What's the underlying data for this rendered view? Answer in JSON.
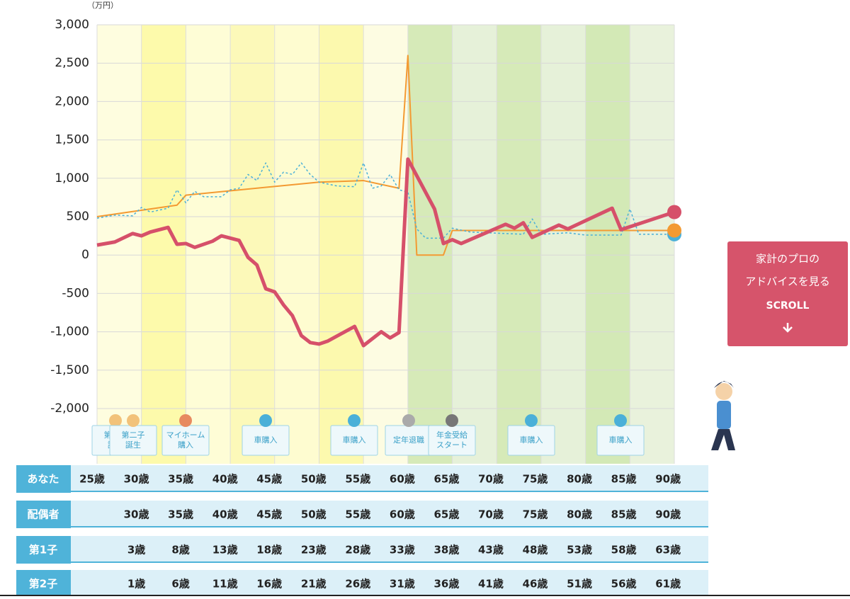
{
  "chart_data": {
    "type": "line",
    "unit": "（万円）",
    "xlim": [
      25,
      90
    ],
    "ylim": [
      -2000,
      3000
    ],
    "yticks": [
      {
        "value": 3000,
        "label": "3,000"
      },
      {
        "value": 2500,
        "label": "2,500"
      },
      {
        "value": 2000,
        "label": "2,000"
      },
      {
        "value": 1500,
        "label": "1,500"
      },
      {
        "value": 1000,
        "label": "1,000"
      },
      {
        "value": 500,
        "label": "500"
      },
      0,
      {
        "value": -500,
        "label": "-500"
      },
      {
        "value": -1000,
        "label": "-1,000"
      },
      {
        "value": -1500,
        "label": "-1,500"
      },
      {
        "value": -2000,
        "label": "-2,000"
      }
    ],
    "grid": true,
    "series": [
      {
        "color": "#f39a32",
        "style": "solid",
        "x": [
          25,
          34,
          35,
          50,
          55,
          59,
          60,
          61,
          64,
          65,
          90
        ],
        "values": [
          500,
          650,
          780,
          950,
          970,
          870,
          2600,
          0,
          0,
          320,
          320
        ]
      },
      {
        "color": "#4ab0d8",
        "style": "dotted",
        "x": [
          25,
          27,
          29,
          30,
          31,
          33,
          34,
          35,
          36,
          37,
          39,
          40,
          41,
          42,
          43,
          44,
          45,
          46,
          47,
          48,
          49,
          50,
          52,
          54,
          55,
          56,
          57,
          58,
          59,
          60,
          61,
          62,
          64,
          65,
          67,
          73,
          74,
          75,
          78,
          80,
          84,
          85,
          86,
          90
        ],
        "values": [
          480,
          520,
          510,
          620,
          560,
          610,
          850,
          680,
          830,
          760,
          760,
          850,
          870,
          1050,
          970,
          1200,
          950,
          1080,
          1050,
          1200,
          1050,
          950,
          900,
          890,
          1200,
          870,
          900,
          1050,
          850,
          820,
          340,
          220,
          220,
          350,
          300,
          270,
          470,
          270,
          290,
          260,
          260,
          600,
          270,
          270
        ]
      },
      {
        "color": "#d6506a",
        "style": "thick",
        "x": [
          25,
          27,
          29,
          30,
          31,
          33,
          34,
          35,
          36,
          38,
          39,
          40,
          41,
          42,
          43,
          44,
          45,
          46,
          47,
          48,
          49,
          50,
          51,
          54,
          55,
          57,
          58,
          59,
          60,
          63,
          64,
          65,
          66,
          71,
          72,
          73,
          74,
          77,
          78,
          83,
          84,
          90
        ],
        "values": [
          130,
          170,
          280,
          250,
          300,
          360,
          140,
          150,
          100,
          180,
          250,
          220,
          190,
          -30,
          -130,
          -440,
          -480,
          -650,
          -790,
          -1050,
          -1140,
          -1160,
          -1120,
          -930,
          -1180,
          -1000,
          -1080,
          -1010,
          1250,
          600,
          150,
          200,
          150,
          400,
          350,
          420,
          230,
          390,
          340,
          610,
          330,
          560
        ]
      }
    ],
    "events": [
      "第一子\n誕生",
      "第二子\n誕生",
      "マイホーム\n購入",
      "車購入",
      "車購入",
      "定年退職",
      "年金受給\nスタート",
      "車購入",
      "車購入"
    ]
  },
  "table": {
    "rows": [
      {
        "label": "あなた",
        "cells": [
          "25歳",
          "30歳",
          "35歳",
          "40歳",
          "45歳",
          "50歳",
          "55歳",
          "60歳",
          "65歳",
          "70歳",
          "75歳",
          "80歳",
          "85歳",
          "90歳"
        ]
      },
      {
        "label": "配偶者",
        "cells": [
          null,
          "30歳",
          "35歳",
          "40歳",
          "45歳",
          "50歳",
          "55歳",
          "60歳",
          "65歳",
          "70歳",
          "75歳",
          "80歳",
          "85歳",
          "90歳"
        ]
      },
      {
        "label": "第1子",
        "cells": [
          null,
          "3歳",
          "8歳",
          "13歳",
          "18歳",
          "23歳",
          "28歳",
          "33歳",
          "38歳",
          "43歳",
          "48歳",
          "53歳",
          "58歳",
          "63歳"
        ]
      },
      {
        "label": "第2子",
        "cells": [
          null,
          "1歳",
          "6歳",
          "11歳",
          "16歳",
          "21歳",
          "26歳",
          "31歳",
          "36歳",
          "41歳",
          "46歳",
          "51歳",
          "56歳",
          "61歳"
        ]
      }
    ]
  },
  "button": {
    "line1": "家計のプロの",
    "line2": "アドバイスを見る",
    "line3": "SCROLL"
  }
}
